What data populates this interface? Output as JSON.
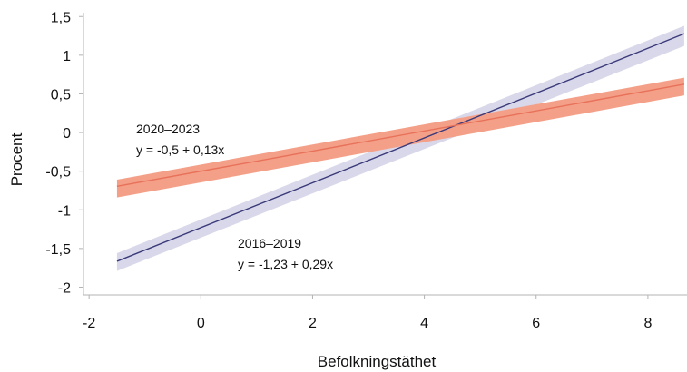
{
  "chart_data": {
    "type": "line",
    "xlabel": "Befolkningstäthet",
    "ylabel": "Procent",
    "xlim": [
      -2.1,
      8.7
    ],
    "ylim": [
      -2.1,
      1.55
    ],
    "x_ticks": [
      -2,
      0,
      2,
      4,
      6,
      8
    ],
    "x_tick_labels": [
      "-2",
      "0",
      "2",
      "4",
      "6",
      "8"
    ],
    "y_ticks": [
      -2,
      -1.5,
      -1,
      -0.5,
      0,
      0.5,
      1,
      1.5
    ],
    "y_tick_labels": [
      "-2",
      "-1,5",
      "-1",
      "-0,5",
      "0",
      "0,5",
      "1",
      "1,5"
    ],
    "grid": false,
    "series": [
      {
        "name": "2016–2019",
        "equation": "y = -1,23 + 0,29x",
        "intercept": -1.23,
        "slope": 0.29,
        "x_range": [
          -1.5,
          8.65
        ],
        "band_lower": [
          -1.79,
          1.12
        ],
        "band_upper": [
          -1.56,
          1.38
        ],
        "line_color": "#3b3a7a",
        "band_color": "#d8d8ea"
      },
      {
        "name": "2020–2023",
        "equation": "y = -0,5 + 0,13x",
        "intercept": -0.5,
        "slope": 0.13,
        "x_range": [
          -1.5,
          8.65
        ],
        "band_lower": [
          -0.84,
          0.48
        ],
        "band_upper": [
          -0.61,
          0.71
        ],
        "line_color": "#e8715a",
        "band_color": "#f4a088"
      }
    ]
  }
}
